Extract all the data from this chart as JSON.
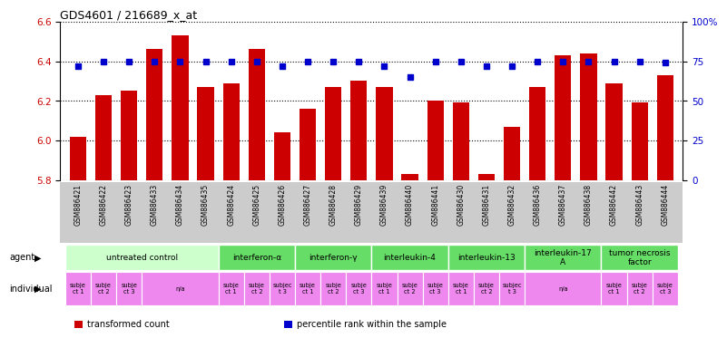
{
  "title": "GDS4601 / 216689_x_at",
  "samples": [
    "GSM886421",
    "GSM886422",
    "GSM886423",
    "GSM886433",
    "GSM886434",
    "GSM886435",
    "GSM886424",
    "GSM886425",
    "GSM886426",
    "GSM886427",
    "GSM886428",
    "GSM886429",
    "GSM886439",
    "GSM886440",
    "GSM886441",
    "GSM886430",
    "GSM886431",
    "GSM886432",
    "GSM886436",
    "GSM886437",
    "GSM886438",
    "GSM886442",
    "GSM886443",
    "GSM886444"
  ],
  "bar_values": [
    6.02,
    6.23,
    6.25,
    6.46,
    6.53,
    6.27,
    6.29,
    6.46,
    6.04,
    6.16,
    6.27,
    6.3,
    6.27,
    5.83,
    6.2,
    6.19,
    5.83,
    6.07,
    6.27,
    6.43,
    6.44,
    6.29,
    6.19,
    6.33
  ],
  "percentile_values": [
    72,
    75,
    75,
    75,
    75,
    75,
    75,
    75,
    72,
    75,
    75,
    75,
    72,
    65,
    75,
    75,
    72,
    72,
    75,
    75,
    75,
    75,
    75,
    74
  ],
  "ylim_left": [
    5.8,
    6.6
  ],
  "ylim_right": [
    0,
    100
  ],
  "yticks_left": [
    5.8,
    6.0,
    6.2,
    6.4,
    6.6
  ],
  "yticks_right": [
    0,
    25,
    50,
    75,
    100
  ],
  "ytick_labels_right": [
    "0",
    "25",
    "50",
    "75",
    "100%"
  ],
  "bar_color": "#cc0000",
  "percentile_color": "#0000cc",
  "agent_groups": [
    {
      "label": "untreated control",
      "start": 0,
      "end": 5,
      "color": "#ccffcc"
    },
    {
      "label": "interferon-α",
      "start": 6,
      "end": 8,
      "color": "#66dd66"
    },
    {
      "label": "interferon-γ",
      "start": 9,
      "end": 11,
      "color": "#66dd66"
    },
    {
      "label": "interleukin-4",
      "start": 12,
      "end": 14,
      "color": "#66dd66"
    },
    {
      "label": "interleukin-13",
      "start": 15,
      "end": 17,
      "color": "#66dd66"
    },
    {
      "label": "interleukin-17\nA",
      "start": 18,
      "end": 20,
      "color": "#66dd66"
    },
    {
      "label": "tumor necrosis\nfactor",
      "start": 21,
      "end": 23,
      "color": "#66dd66"
    }
  ],
  "individual_groups": [
    {
      "label": "subje\nct 1",
      "start": 0,
      "end": 0,
      "color": "#ee88ee"
    },
    {
      "label": "subje\nct 2",
      "start": 1,
      "end": 1,
      "color": "#ee88ee"
    },
    {
      "label": "subje\nct 3",
      "start": 2,
      "end": 2,
      "color": "#ee88ee"
    },
    {
      "label": "n/a",
      "start": 3,
      "end": 5,
      "color": "#ee88ee"
    },
    {
      "label": "subje\nct 1",
      "start": 6,
      "end": 6,
      "color": "#ee88ee"
    },
    {
      "label": "subje\nct 2",
      "start": 7,
      "end": 7,
      "color": "#ee88ee"
    },
    {
      "label": "subjec\nt 3",
      "start": 8,
      "end": 8,
      "color": "#ee88ee"
    },
    {
      "label": "subje\nct 1",
      "start": 9,
      "end": 9,
      "color": "#ee88ee"
    },
    {
      "label": "subje\nct 2",
      "start": 10,
      "end": 10,
      "color": "#ee88ee"
    },
    {
      "label": "subje\nct 3",
      "start": 11,
      "end": 11,
      "color": "#ee88ee"
    },
    {
      "label": "subje\nct 1",
      "start": 12,
      "end": 12,
      "color": "#ee88ee"
    },
    {
      "label": "subje\nct 2",
      "start": 13,
      "end": 13,
      "color": "#ee88ee"
    },
    {
      "label": "subje\nct 3",
      "start": 14,
      "end": 14,
      "color": "#ee88ee"
    },
    {
      "label": "subje\nct 1",
      "start": 15,
      "end": 15,
      "color": "#ee88ee"
    },
    {
      "label": "subje\nct 2",
      "start": 16,
      "end": 16,
      "color": "#ee88ee"
    },
    {
      "label": "subjec\nt 3",
      "start": 17,
      "end": 17,
      "color": "#ee88ee"
    },
    {
      "label": "n/a",
      "start": 18,
      "end": 20,
      "color": "#ee88ee"
    },
    {
      "label": "subje\nct 1",
      "start": 21,
      "end": 21,
      "color": "#ee88ee"
    },
    {
      "label": "subje\nct 2",
      "start": 22,
      "end": 22,
      "color": "#ee88ee"
    },
    {
      "label": "subje\nct 3",
      "start": 23,
      "end": 23,
      "color": "#ee88ee"
    }
  ],
  "legend_items": [
    {
      "color": "#cc0000",
      "label": "transformed count"
    },
    {
      "color": "#0000cc",
      "label": "percentile rank within the sample"
    }
  ],
  "background_color": "#ffffff",
  "tick_label_color_left": "#cc0000",
  "tick_label_color_right": "#0000cc"
}
